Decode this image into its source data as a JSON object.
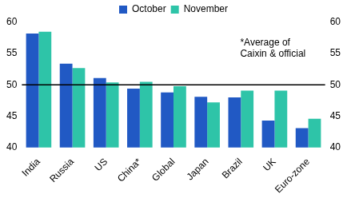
{
  "chart_data": {
    "type": "bar",
    "categories": [
      "India",
      "Russia",
      "US",
      "China*",
      "Global",
      "Japan",
      "Brazil",
      "UK",
      "Euro-zone"
    ],
    "series": [
      {
        "name": "October",
        "color": "#2159c4",
        "values": [
          58.2,
          53.4,
          51.1,
          49.4,
          48.8,
          48.1,
          48.0,
          44.3,
          43.1
        ]
      },
      {
        "name": "November",
        "color": "#2ec4a8",
        "values": [
          58.5,
          52.7,
          50.4,
          50.5,
          49.8,
          47.2,
          49.1,
          49.1,
          44.6
        ]
      }
    ],
    "ylim": [
      40,
      60
    ],
    "yticks": [
      40,
      45,
      50,
      55,
      60
    ],
    "y2lim": [
      40,
      60
    ],
    "y2ticks": [
      40,
      45,
      50,
      55,
      60
    ],
    "reference_line": 50,
    "annotation": [
      "*Average of",
      "Caixin & official"
    ],
    "grid": false,
    "legend": "top"
  }
}
